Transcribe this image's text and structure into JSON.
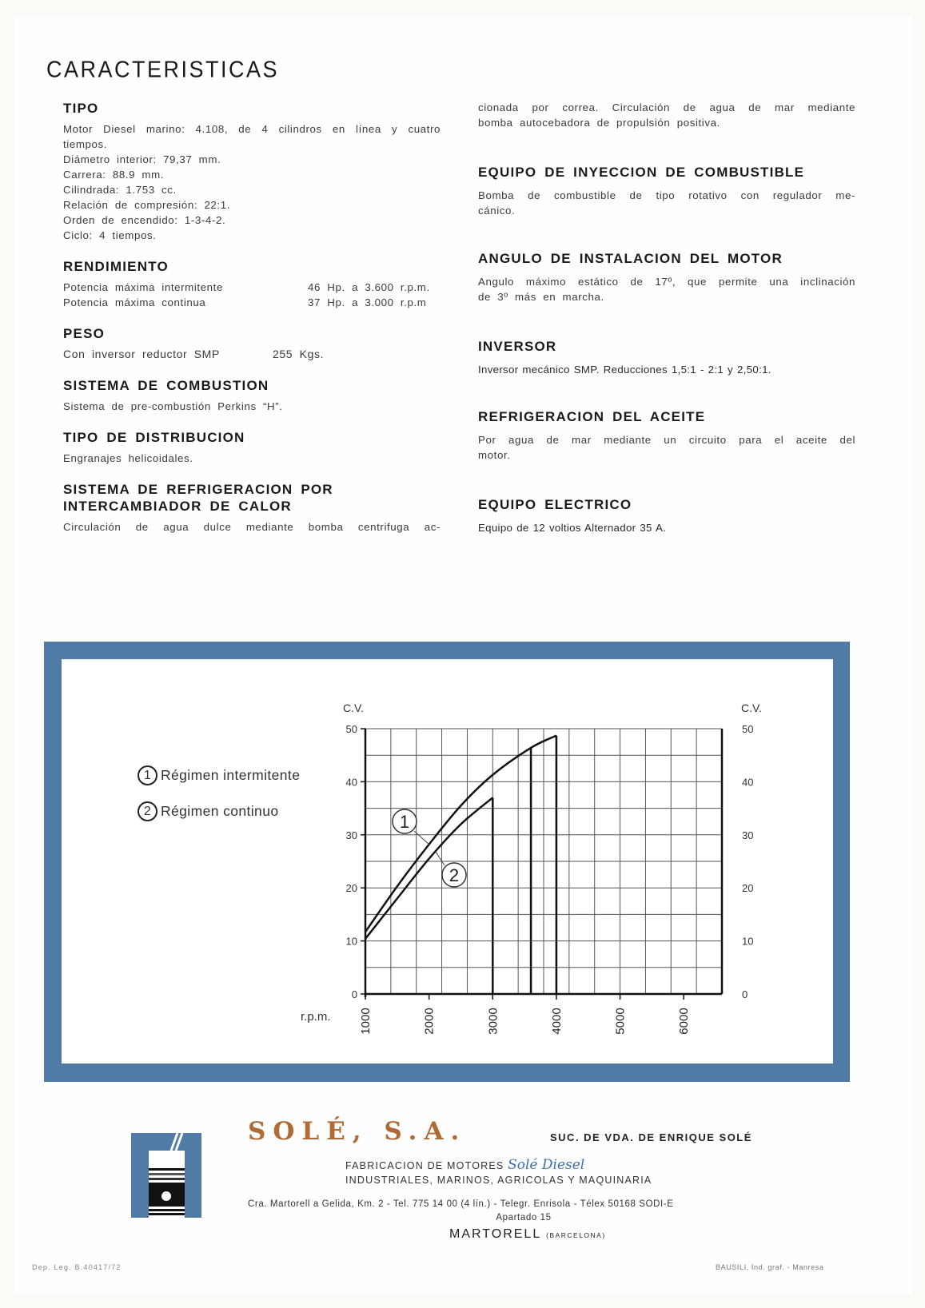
{
  "title": "CARACTERISTICAS",
  "tipo": {
    "heading": "TIPO",
    "first_line": "Motor Diesel marino: 4.108, de 4 cilindros en línea y cuatro",
    "lines": [
      "tiempos.",
      "Diámetro interior: 79,37 mm.",
      "Carrera: 88.9 mm.",
      "Cilindrada: 1.753 cc.",
      "Relación de compresión: 22:1.",
      "Orden de encendido: 1-3-4-2.",
      "Ciclo: 4 tiempos."
    ]
  },
  "rendimiento": {
    "heading": "RENDIMIENTO",
    "rows": [
      {
        "label": "Potencia máxima intermitente",
        "value": "46 Hp. a 3.600 r.p.m."
      },
      {
        "label": "Potencia máxima continua",
        "value": "37 Hp. a 3.000 r.p.m"
      }
    ]
  },
  "peso": {
    "heading": "PESO",
    "label": "Con inversor reductor SMP",
    "value": "255 Kgs."
  },
  "combustion": {
    "heading": "SISTEMA DE COMBUSTION",
    "text": "Sistema de pre-combustión Perkins “H”."
  },
  "distribucion": {
    "heading": "TIPO DE DISTRIBUCION",
    "text": "Engranajes helicoidales."
  },
  "refrigeracion": {
    "heading_1": "SISTEMA DE REFRIGERACION POR",
    "heading_2": "INTERCAMBIADOR DE CALOR",
    "line_1": "Circulación de agua dulce mediante bomba centrifuga ac-",
    "line_2": "cionada por correa. Circulación de agua de mar mediante",
    "line_3": "bomba autocebadora de propulsión positiva."
  },
  "inyeccion": {
    "heading": "EQUIPO DE INYECCION DE COMBUSTIBLE",
    "line_1": "Bomba de combustible de tipo rotativo con regulador me-",
    "line_2": "cánico."
  },
  "angulo": {
    "heading": "ANGULO DE INSTALACION DEL MOTOR",
    "line_1": "Angulo máximo estático de 17º, que permite una inclinación",
    "line_2": "de 3º más en marcha."
  },
  "inversor": {
    "heading": "INVERSOR",
    "text": "Inversor mecánico SMP. Reducciones 1,5:1 - 2:1 y 2,50:1."
  },
  "aceite": {
    "heading": "REFRIGERACION DEL ACEITE",
    "line_1": "Por agua de mar mediante un circuito para el aceite del",
    "line_2": "motor."
  },
  "electrico": {
    "heading": "EQUIPO ELECTRICO",
    "text": "Equipo de 12 voltios Alternador 35 A."
  },
  "chart_data": {
    "type": "line",
    "ylabel": "C.V.",
    "ylabel_right": "C.V.",
    "xlabel": "r.p.m.",
    "xlim": [
      1000,
      6600
    ],
    "ylim": [
      0,
      50
    ],
    "xticks": [
      "1000",
      "2000",
      "3000",
      "4000",
      "5000",
      "6000"
    ],
    "yticks": [
      "0",
      "10",
      "20",
      "30",
      "40",
      "50"
    ],
    "grid": true,
    "legend_position": "left",
    "series": [
      {
        "name": "Régimen intermitente",
        "marker": "1",
        "x": [
          1000,
          1500,
          2000,
          2500,
          3000,
          3600,
          4000
        ],
        "y": [
          11.7,
          20.3,
          28.2,
          35.5,
          41.3,
          46.4,
          48.7
        ],
        "drop_lines": [
          3600,
          4000
        ]
      },
      {
        "name": "Régimen continuo",
        "marker": "2",
        "x": [
          1000,
          1500,
          2000,
          2500,
          3000
        ],
        "y": [
          10.4,
          18.0,
          25.5,
          32.0,
          37.0
        ],
        "drop_lines": [
          3000
        ]
      }
    ]
  },
  "footer": {
    "company": "SOLÉ, S.A.",
    "successor": "SUC. DE VDA. DE ENRIQUE SOLÉ",
    "fabricacion": "FABRICACION DE MOTORES",
    "brand_script": "Solé Diesel",
    "sectors": "INDUSTRIALES, MARINOS, AGRICOLAS Y MAQUINARIA",
    "address": "Cra. Martorell a Gelida, Km. 2 - Tel. 775 14 00 (4 lín.) - Telegr. Enrisola - Télex 50168 SODI-E",
    "apartado": "Apartado 15",
    "city": "MARTORELL",
    "province": "(BARCELONA)",
    "deposito": "Dep. Leg. B.40417/72",
    "printer": "BAUSILI, Ind. graf. - Manresa"
  },
  "colors": {
    "frame_blue": "#4f7ba6",
    "brand_brown": "#b06a36",
    "script_blue": "#3d6fb0"
  }
}
